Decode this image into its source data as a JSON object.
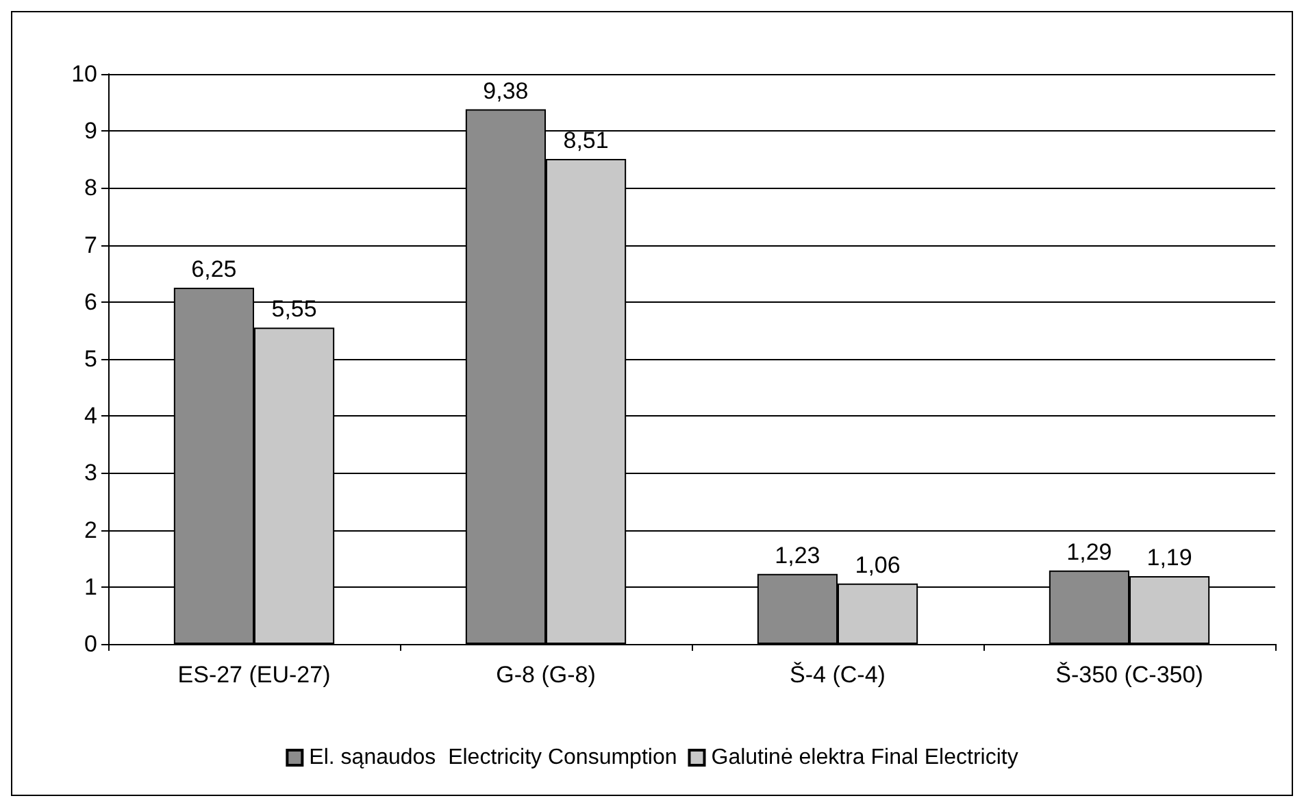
{
  "chart_data": {
    "type": "bar",
    "categories": [
      "ES-27 (EU-27)",
      "G-8 (G-8)",
      "Š-4 (C-4)",
      "Š-350 (C-350)"
    ],
    "series": [
      {
        "name": "El. sąnaudos  Electricity Consumption",
        "color": "#8c8c8c",
        "values": [
          6.25,
          9.38,
          1.23,
          1.29
        ],
        "value_labels": [
          "6,25",
          "9,38",
          "1,23",
          "1,29"
        ]
      },
      {
        "name": "Galutinė elektra Final Electricity",
        "color": "#c8c8c8",
        "values": [
          5.55,
          8.51,
          1.06,
          1.19
        ],
        "value_labels": [
          "5,55",
          "8,51",
          "1,06",
          "1,19"
        ]
      }
    ],
    "ylim": [
      0,
      10
    ],
    "yticks": [
      0,
      1,
      2,
      3,
      4,
      5,
      6,
      7,
      8,
      9,
      10
    ],
    "grid": "y",
    "legend": "bottom"
  }
}
